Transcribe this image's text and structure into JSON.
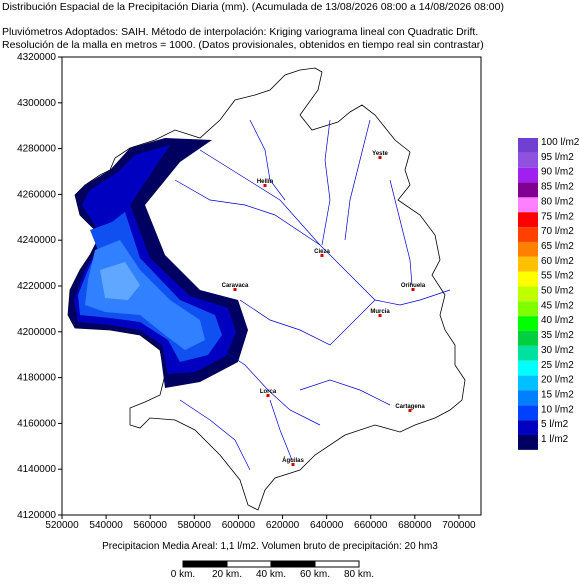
{
  "header": {
    "title": "Distribución Espacial de la Precipitación Diaria (mm). (Acumulada de 13/08/2026 08:00 a 14/08/2026 08:00)",
    "line2": "Pluviómetros Adoptados: SAIH.  Método de interpolación: Kriging variograma lineal con Quadratic Drift.",
    "line3": "Resolución de la malla en metros = 1000. (Datos provisionales, obtenidos en tiempo real sin contrastar)"
  },
  "map": {
    "xlim": [
      520000,
      710000
    ],
    "ylim": [
      4120000,
      4320000
    ],
    "xticks": [
      520000,
      540000,
      560000,
      580000,
      600000,
      620000,
      640000,
      660000,
      680000,
      700000
    ],
    "yticks": [
      4120000,
      4140000,
      4160000,
      4180000,
      4200000,
      4220000,
      4240000,
      4260000,
      4280000,
      4300000,
      4320000
    ],
    "cities": [
      "Yeste",
      "Hellín",
      "Cieza",
      "Caravaca",
      "Orihuela",
      "Murcia",
      "Lorca",
      "Cartagena",
      "Águilas"
    ]
  },
  "legend": [
    {
      "label": "100 l/m2",
      "color": "#7040d0"
    },
    {
      "label": "95 l/m2",
      "color": "#9050e0"
    },
    {
      "label": "90 l/m2",
      "color": "#a020f0"
    },
    {
      "label": "85 l/m2",
      "color": "#800090"
    },
    {
      "label": "80 l/m2",
      "color": "#ff80ff"
    },
    {
      "label": "75 l/m2",
      "color": "#ff0000"
    },
    {
      "label": "70 l/m2",
      "color": "#ff4000"
    },
    {
      "label": "65 l/m2",
      "color": "#ff8000"
    },
    {
      "label": "60 l/m2",
      "color": "#ffc000"
    },
    {
      "label": "55 l/m2",
      "color": "#ffff00"
    },
    {
      "label": "50 l/m2",
      "color": "#c0ff00"
    },
    {
      "label": "45 l/m2",
      "color": "#80ff00"
    },
    {
      "label": "40 l/m2",
      "color": "#00ff00"
    },
    {
      "label": "35 l/m2",
      "color": "#00d040"
    },
    {
      "label": "30 l/m2",
      "color": "#00e0a0"
    },
    {
      "label": "25 l/m2",
      "color": "#00ffff"
    },
    {
      "label": "20 l/m2",
      "color": "#00c0ff"
    },
    {
      "label": "15 l/m2",
      "color": "#0080ff"
    },
    {
      "label": "10 l/m2",
      "color": "#0040ff"
    },
    {
      "label": "5 l/m2",
      "color": "#0000c0"
    },
    {
      "label": "1 l/m2",
      "color": "#000060"
    }
  ],
  "footer": "Precipitacion Media Areal: 1,1 l/m2. Volumen bruto de precipitación: 20 hm3",
  "scale_bar": [
    "0 km.",
    "20 km.",
    "40 km.",
    "60 km.",
    "80 km."
  ]
}
